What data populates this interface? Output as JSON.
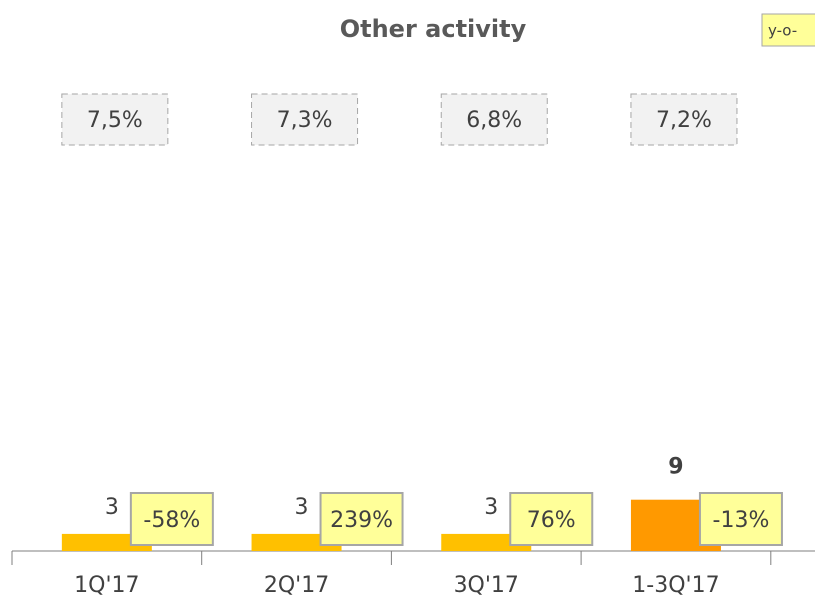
{
  "chart_data": {
    "type": "bar",
    "title": "Other activity",
    "categories": [
      "1Q'17",
      "2Q'17",
      "3Q'17",
      "1-3Q'17"
    ],
    "values": [
      3,
      3,
      3,
      9
    ],
    "colors": [
      "#ffc000",
      "#ffc000",
      "#ffc000",
      "#ff9900"
    ],
    "yoy": {
      "name": "y-o-",
      "color": "#ffff99",
      "values": [
        -58,
        239,
        76,
        -13
      ],
      "value_labels": [
        "-58%",
        "239%",
        "76%",
        "-13%"
      ]
    },
    "share": {
      "color": "#f2f2f2",
      "values": [
        7.5,
        7.3,
        6.8,
        7.2
      ],
      "value_labels": [
        "7,5%",
        "7,3%",
        "6,8%",
        "7,2%"
      ]
    }
  }
}
